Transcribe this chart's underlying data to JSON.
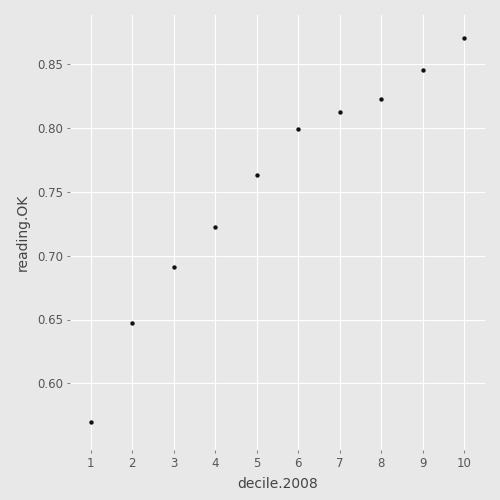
{
  "x": [
    1,
    2,
    3,
    4,
    5,
    6,
    7,
    8,
    9,
    10
  ],
  "y": [
    0.57,
    0.647,
    0.691,
    0.722,
    0.763,
    0.799,
    0.812,
    0.822,
    0.845,
    0.87
  ],
  "xlabel": "decile.2008",
  "ylabel": "reading.OK",
  "bg_color": "#E8E8E8",
  "grid_color": "#FFFFFF",
  "point_color": "#111111",
  "point_size": 10,
  "xlim": [
    0.5,
    10.5
  ],
  "ylim": [
    0.548,
    0.888
  ],
  "xticks": [
    1,
    2,
    3,
    4,
    5,
    6,
    7,
    8,
    9,
    10
  ],
  "yticks": [
    0.6,
    0.65,
    0.7,
    0.75,
    0.8,
    0.85
  ],
  "xlabel_fontsize": 10,
  "ylabel_fontsize": 10,
  "tick_fontsize": 8.5,
  "tick_color": "#555555",
  "label_color": "#444444"
}
